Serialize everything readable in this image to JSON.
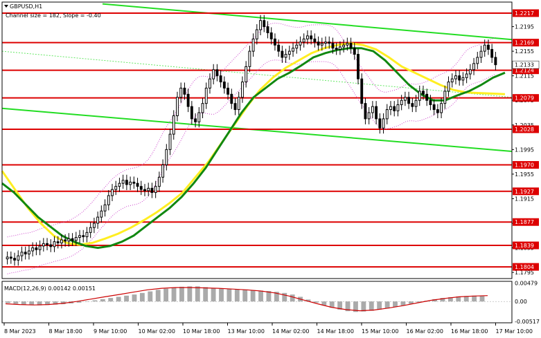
{
  "header": {
    "symbol_title": "GBPUSD,H1",
    "channel_info": "Channel size = 182, Slope = -0.40"
  },
  "macd_label": "MACD(12,26,9) 0.00142 0.00151",
  "colors": {
    "candle": "#000000",
    "level_line": "#dd0000",
    "level_tag_bg": "#dd0000",
    "level_tag_text": "#ffffff",
    "channel": "#22dd22",
    "ma_fast": "#118811",
    "ma_slow": "#ffee22",
    "bollinger": "#cc44cc",
    "macd_hist": "#aaaaaa",
    "macd_signal": "#cc0000"
  },
  "chart_data": {
    "type": "candlestick",
    "symbol": "GBPUSD",
    "timeframe": "H1",
    "ylim": [
      1.1785,
      1.2235
    ],
    "x_ticks": [
      "8 Mar 2023",
      "8 Mar 18:00",
      "9 Mar 10:00",
      "10 Mar 02:00",
      "10 Mar 18:00",
      "13 Mar 10:00",
      "14 Mar 02:00",
      "14 Mar 18:00",
      "15 Mar 10:00",
      "16 Mar 02:00",
      "16 Mar 18:00",
      "17 Mar 10:00"
    ],
    "price_axis_labels": [
      "1.2195",
      "1.2155",
      "1.2115",
      "1.2075",
      "1.2035",
      "1.1995",
      "1.1955",
      "1.1915",
      "1.1875",
      "1.1835",
      "1.1795"
    ],
    "horizontal_levels": [
      {
        "price": 1.2217,
        "label": "1.2217"
      },
      {
        "price": 1.2169,
        "label": "1.2169"
      },
      {
        "price": 1.2124,
        "label": "1.2124"
      },
      {
        "price": 1.2079,
        "label": "1.2079"
      },
      {
        "price": 1.2028,
        "label": "1.2028"
      },
      {
        "price": 1.197,
        "label": "1.1970"
      },
      {
        "price": 1.1927,
        "label": "1.1927"
      },
      {
        "price": 1.1877,
        "label": "1.1877"
      },
      {
        "price": 1.1839,
        "label": "1.1839"
      },
      {
        "price": 1.1804,
        "label": "1.1804"
      }
    ],
    "current_price_label": "1.2133",
    "series": [
      {
        "type": "close",
        "values": [
          1.182,
          1.1818,
          1.1815,
          1.1822,
          1.1828,
          1.1825,
          1.183,
          1.1835,
          1.1832,
          1.1838,
          1.1842,
          1.184,
          1.1837,
          1.1845,
          1.1843,
          1.1848,
          1.1846,
          1.185,
          1.1847,
          1.1852,
          1.1855,
          1.1853,
          1.186,
          1.1868,
          1.1875,
          1.1885,
          1.1895,
          1.1905,
          1.192,
          1.193,
          1.1935,
          1.194,
          1.1945,
          1.1938,
          1.1942,
          1.194,
          1.1935,
          1.193,
          1.1928,
          1.1932,
          1.1925,
          1.1935,
          1.195,
          1.197,
          1.1995,
          1.202,
          1.205,
          1.208,
          1.2095,
          1.2085,
          1.2065,
          1.2045,
          1.204,
          1.2055,
          1.207,
          1.2095,
          1.211,
          1.2125,
          1.2115,
          1.2105,
          1.2095,
          1.2085,
          1.207,
          1.206,
          1.208,
          1.2105,
          1.213,
          1.2155,
          1.2175,
          1.219,
          1.2205,
          1.2195,
          1.2185,
          1.2175,
          1.2165,
          1.2155,
          1.2145,
          1.215,
          1.2155,
          1.216,
          1.2165,
          1.217,
          1.2175,
          1.218,
          1.2175,
          1.217,
          1.2165,
          1.2168,
          1.217,
          1.2168,
          1.216,
          1.2158,
          1.2162,
          1.2165,
          1.2168,
          1.216,
          1.215,
          1.211,
          1.207,
          1.2045,
          1.2055,
          1.2065,
          1.2045,
          1.203,
          1.2045,
          1.206,
          1.2065,
          1.2058,
          1.2068,
          1.2075,
          1.208,
          1.207,
          1.2065,
          1.2075,
          1.209,
          1.2085,
          1.2075,
          1.2068,
          1.206,
          1.2055,
          1.207,
          1.209,
          1.2105,
          1.211,
          1.2115,
          1.2108,
          1.2112,
          1.2118,
          1.2125,
          1.2135,
          1.2145,
          1.2155,
          1.2165,
          1.2158,
          1.2145,
          1.2133
        ]
      },
      {
        "type": "moving_average",
        "values": [
          1.194,
          1.1925,
          1.1905,
          1.1885,
          1.187,
          1.1855,
          1.1845,
          1.1838,
          1.1835,
          1.1838,
          1.1845,
          1.1855,
          1.187,
          1.1885,
          1.19,
          1.1918,
          1.194,
          1.1965,
          1.1995,
          1.2025,
          1.2055,
          1.208,
          1.2095,
          1.211,
          1.212,
          1.2132,
          1.2145,
          1.2152,
          1.2157,
          1.216,
          1.216,
          1.2155,
          1.214,
          1.212,
          1.21,
          1.2085,
          1.2075,
          1.2075,
          1.2083,
          1.209,
          1.21,
          1.2112,
          1.212
        ]
      },
      {
        "type": "moving_average",
        "values": [
          1.196,
          1.193,
          1.19,
          1.1875,
          1.1855,
          1.1843,
          1.184,
          1.1843,
          1.185,
          1.1858,
          1.1868,
          1.188,
          1.1893,
          1.1908,
          1.1925,
          1.195,
          1.1975,
          1.2005,
          1.2035,
          1.2065,
          1.2092,
          1.2112,
          1.2128,
          1.214,
          1.2152,
          1.216,
          1.2165,
          1.2168,
          1.2165,
          1.2158,
          1.2145,
          1.213,
          1.212,
          1.211,
          1.21,
          1.2092,
          1.2088,
          1.2087,
          1.2086,
          1.2085
        ]
      },
      {
        "type": "histogram",
        "values": [
          -0.0004,
          -0.0006,
          -0.0008,
          -0.0009,
          -0.001,
          -0.0009,
          -0.0008,
          -0.0007,
          -0.0005,
          -0.0003,
          0,
          0.0003,
          0.0006,
          0.0009,
          0.0012,
          0.0015,
          0.0018,
          0.0022,
          0.0026,
          0.003,
          0.0033,
          0.0036,
          0.0038,
          0.0039,
          0.0039,
          0.0037,
          0.0035,
          0.0033,
          0.0032,
          0.0031,
          0.003,
          0.0029,
          0.0028,
          0.0027,
          0.0025,
          0.0022,
          0.0018,
          0.0012,
          0.0005,
          -0.0003,
          -0.001,
          -0.0016,
          -0.0021,
          -0.0025,
          -0.0027,
          -0.0026,
          -0.0024,
          -0.0021,
          -0.0018,
          -0.0014,
          -0.001,
          -0.0006,
          -0.0002,
          0.0002,
          0.0006,
          0.0009,
          0.0011,
          0.0013,
          0.0014,
          0.0015,
          0.0014
        ]
      },
      {
        "type": "signal",
        "values": [
          -0.0006,
          -0.0008,
          -0.0009,
          -0.0008,
          -0.0005,
          0,
          0.0006,
          0.0012,
          0.0018,
          0.0024,
          0.003,
          0.0034,
          0.0036,
          0.0036,
          0.0035,
          0.0034,
          0.0032,
          0.003,
          0.0027,
          0.0022,
          0.0014,
          0.0004,
          -0.0006,
          -0.0015,
          -0.0021,
          -0.0024,
          -0.0022,
          -0.0017,
          -0.0011,
          -0.0004,
          0.0003,
          0.0008,
          0.0012,
          0.0014,
          0.0015
        ]
      }
    ],
    "macd_axis_labels": [
      "0.00479",
      "0.00",
      "-0.00517"
    ],
    "macd_ylim": [
      -0.0055,
      0.0052
    ]
  }
}
